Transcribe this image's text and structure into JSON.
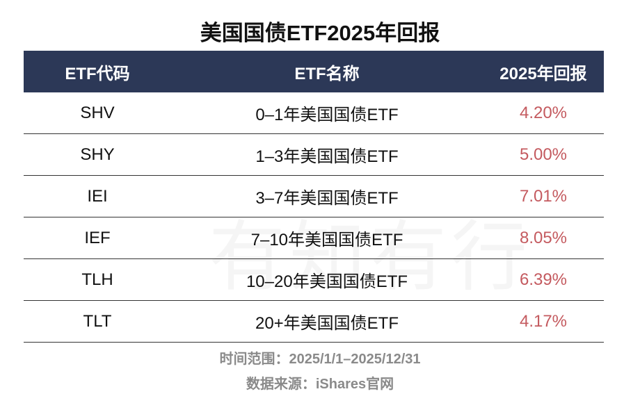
{
  "title": "美国国债ETF2025年回报",
  "watermark": "有知有行",
  "table": {
    "header": [
      "ETF代码",
      "ETF名称",
      "2025年回报"
    ],
    "rows": [
      [
        "SHV",
        "0–1年美国国债ETF",
        "4.20%"
      ],
      [
        "SHY",
        "1–3年美国国债ETF",
        "5.00%"
      ],
      [
        "IEI",
        "3–7年美国国债ETF",
        "7.01%"
      ],
      [
        "IEF",
        "7–10年美国国债ETF",
        "8.05%"
      ],
      [
        "TLH",
        "10–20年美国国债ETF",
        "6.39%"
      ],
      [
        "TLT",
        "20+年美国国债ETF",
        "4.17%"
      ]
    ]
  },
  "footer": {
    "range": "时间范围：2025/1/1–2025/12/31",
    "source": "数据来源：iShares官网"
  }
}
